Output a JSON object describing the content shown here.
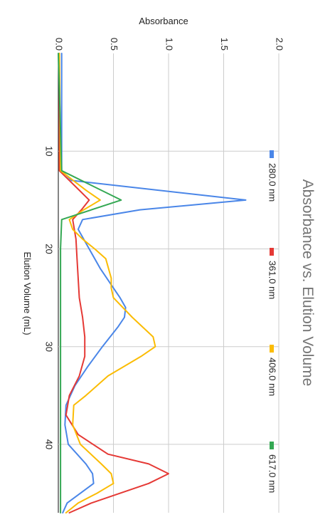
{
  "chart_data": {
    "type": "line",
    "title": "Absorbance vs. Elution Volume",
    "xlabel": "Elution Volume (mL)",
    "ylabel": "Absorbance",
    "xlim": [
      0,
      47
    ],
    "ylim": [
      0,
      2
    ],
    "x_ticks": [
      10,
      20,
      30,
      40
    ],
    "y_ticks": [
      0,
      0.5,
      1,
      1.5,
      2
    ],
    "x_tick_labels": [
      "10",
      "20",
      "30",
      "40"
    ],
    "y_tick_labels": [
      "0.0",
      "0.5",
      "1.0",
      "1.5",
      "2.0"
    ],
    "grid": true,
    "legend_position": "top",
    "orientation": "rotated-90-clockwise",
    "series": [
      {
        "name": "280.0 nm",
        "color": "#4a86e8",
        "x": [
          0,
          12,
          13,
          15,
          16,
          17,
          18,
          20,
          22,
          24,
          25,
          26,
          27,
          28,
          30,
          32,
          34,
          36,
          38,
          40,
          42,
          43,
          44,
          46,
          47
        ],
        "y": [
          0.03,
          0.03,
          0.12,
          1.7,
          0.74,
          0.22,
          0.18,
          0.28,
          0.38,
          0.5,
          0.56,
          0.61,
          0.6,
          0.54,
          0.4,
          0.27,
          0.15,
          0.07,
          0.06,
          0.09,
          0.25,
          0.31,
          0.32,
          0.08,
          0.04
        ]
      },
      {
        "name": "361.0 nm",
        "color": "#e53935",
        "x": [
          0,
          12,
          14,
          15,
          16,
          17,
          19,
          21,
          23,
          25,
          27,
          29,
          31,
          33,
          35,
          37,
          39,
          41,
          42,
          43,
          44,
          46,
          47
        ],
        "y": [
          0.01,
          0.01,
          0.19,
          0.28,
          0.21,
          0.13,
          0.16,
          0.17,
          0.18,
          0.19,
          0.22,
          0.24,
          0.24,
          0.19,
          0.1,
          0.07,
          0.18,
          0.45,
          0.82,
          1.0,
          0.82,
          0.3,
          0.1
        ]
      },
      {
        "name": "406.0 nm",
        "color": "#fbbc04",
        "x": [
          0,
          12,
          14,
          15,
          16,
          17,
          18,
          19,
          20,
          21,
          23,
          24,
          25,
          27,
          29,
          30,
          31,
          33,
          35,
          36,
          38,
          40,
          42,
          43,
          44,
          45,
          46,
          47
        ],
        "y": [
          0.01,
          0.02,
          0.25,
          0.38,
          0.23,
          0.1,
          0.13,
          0.22,
          0.33,
          0.43,
          0.48,
          0.48,
          0.5,
          0.67,
          0.86,
          0.88,
          0.75,
          0.45,
          0.25,
          0.14,
          0.13,
          0.2,
          0.39,
          0.48,
          0.5,
          0.35,
          0.18,
          0.07
        ]
      },
      {
        "name": "617.0 nm",
        "color": "#34a853",
        "x": [
          0,
          12,
          15,
          17,
          20,
          25,
          30,
          35,
          40,
          45,
          47
        ],
        "y": [
          0.0,
          0.03,
          0.57,
          0.03,
          0.02,
          0.02,
          0.02,
          0.02,
          0.02,
          0.02,
          0.02
        ]
      }
    ]
  }
}
